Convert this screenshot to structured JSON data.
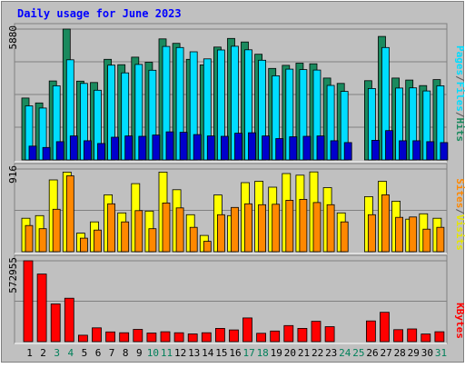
{
  "chart_data": {
    "type": "bar",
    "title": "Daily usage for June 2023",
    "categories": [
      "1",
      "2",
      "3",
      "4",
      "5",
      "6",
      "7",
      "8",
      "9",
      "10",
      "11",
      "12",
      "13",
      "14",
      "15",
      "16",
      "17",
      "18",
      "19",
      "20",
      "21",
      "22",
      "23",
      "24",
      "25",
      "26",
      "27",
      "28",
      "29",
      "30",
      "31"
    ],
    "weekend_days": [
      "3",
      "4",
      "10",
      "11",
      "17",
      "18",
      "24",
      "25",
      "31"
    ],
    "panels": [
      {
        "id": "hits-files-pages",
        "ymax": 5880,
        "ymax_label": "5880",
        "series": [
          {
            "name": "Hits",
            "color": "#1a8a5e",
            "values": [
              2780,
              2560,
              3550,
              5880,
              3540,
              3480,
              4520,
              4280,
              4620,
              4390,
              5440,
              5240,
              4520,
              4270,
              5070,
              5460,
              5300,
              4750,
              4110,
              4250,
              4350,
              4320,
              3680,
              3440,
              0,
              3560,
              5550,
              3680,
              3590,
              3340,
              3610
            ]
          },
          {
            "name": "Files",
            "color": "#00ddff",
            "values": [
              2430,
              2330,
              3330,
              4500,
              3440,
              3130,
              4260,
              3910,
              4290,
              4030,
              5100,
              5050,
              4860,
              4540,
              4940,
              5110,
              4950,
              4480,
              3780,
              4080,
              4060,
              4040,
              3350,
              3080,
              0,
              3210,
              5050,
              3230,
              3240,
              3100,
              3330
            ]
          },
          {
            "name": "Pages",
            "color": "#0000cc",
            "values": [
              620,
              560,
              820,
              1080,
              860,
              740,
              1020,
              1080,
              1060,
              1120,
              1260,
              1240,
              1140,
              1080,
              1060,
              1200,
              1220,
              1080,
              960,
              1040,
              1060,
              1080,
              860,
              780,
              0,
              880,
              1320,
              860,
              860,
              820,
              780
            ]
          }
        ]
      },
      {
        "id": "visits-sites",
        "ymax": 916,
        "ymax_label": "916",
        "series": [
          {
            "name": "Visits",
            "color": "#ffff00",
            "values": [
              370,
              400,
              795,
              882,
              205,
              330,
              630,
              430,
              754,
              450,
              882,
              686,
              410,
              180,
              628,
              400,
              765,
              780,
              715,
              866,
              848,
              884,
              710,
              430,
              0,
              610,
              780,
              560,
              360,
              420,
              370
            ]
          },
          {
            "name": "Sites",
            "color": "#ff8800",
            "values": [
              290,
              255,
              470,
              841,
              150,
              240,
              530,
              330,
              455,
              255,
              540,
              485,
              270,
              115,
              410,
              490,
              530,
              520,
              525,
              570,
              580,
              545,
              520,
              330,
              0,
              410,
              630,
              380,
              385,
              250,
              270
            ]
          }
        ]
      },
      {
        "id": "kbytes",
        "ymax": 572955,
        "ymax_label": "572955",
        "series": [
          {
            "name": "KBytes",
            "color": "#ff0000",
            "values": [
              572955,
              479000,
              267000,
              308000,
              46000,
              98000,
              69000,
              63000,
              87000,
              61000,
              70000,
              63000,
              55000,
              63000,
              94000,
              83000,
              168000,
              59000,
              75000,
              114000,
              94000,
              144000,
              106000,
              0,
              0,
              147000,
              208000,
              85000,
              90000,
              54000,
              70000
            ]
          }
        ]
      }
    ],
    "legend": {
      "placement": "right",
      "hits": "Hits",
      "files": "Files",
      "pages": "Pages",
      "visits": "Visits",
      "sites": "Sites",
      "kbytes": "KBytes",
      "separator": "/"
    },
    "colors": {
      "background": "#c0c0c0",
      "panel_bg": "#c0c0c0",
      "gridline": "#808080",
      "title": "#0000ff",
      "weekday_label": "#000000",
      "weekend_label": "#00805a"
    }
  }
}
